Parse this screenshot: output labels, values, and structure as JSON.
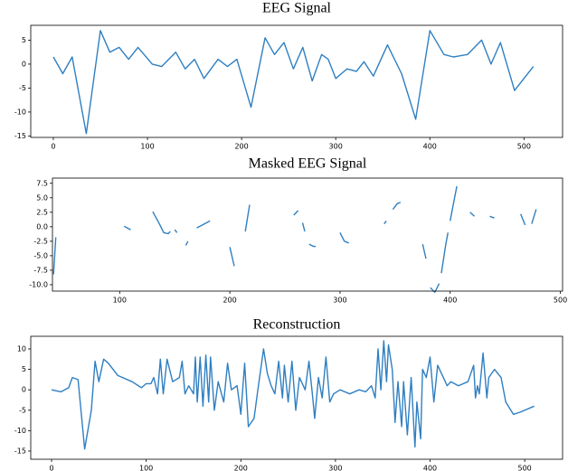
{
  "chart_data": [
    {
      "type": "line",
      "title": "EEG Signal",
      "color": "#2f7fc1",
      "x": [
        0,
        10,
        20,
        35,
        50,
        60,
        70,
        80,
        90,
        105,
        115,
        130,
        140,
        150,
        160,
        175,
        185,
        195,
        210,
        225,
        235,
        245,
        255,
        265,
        275,
        285,
        292,
        300,
        312,
        322,
        330,
        340,
        355,
        370,
        385,
        400,
        415,
        425,
        440,
        455,
        465,
        475,
        490,
        500,
        510
      ],
      "values": [
        1.5,
        -2,
        1.5,
        -14.5,
        7,
        2.5,
        3.5,
        1,
        3.5,
        0,
        -0.5,
        2.5,
        -1,
        1,
        -3,
        1,
        -0.5,
        1,
        -9,
        5.5,
        2,
        4.5,
        -1,
        3.5,
        -3.5,
        2,
        1,
        -3,
        -1,
        -1.5,
        0.5,
        -2.5,
        4,
        -2,
        -11.5,
        7,
        2,
        1.5,
        2,
        5,
        0,
        4.5,
        -5.5,
        -3,
        -0.5
      ],
      "xlim": [
        -24,
        541
      ],
      "ylim": [
        -15.3,
        8.1
      ],
      "xticks": [
        0,
        100,
        200,
        300,
        400,
        500
      ],
      "yticks": [
        -15,
        -10,
        -5,
        0,
        5
      ]
    },
    {
      "type": "line",
      "title": "Masked EEG Signal",
      "color": "#2f7fc1",
      "x": [
        40,
        42,
        null,
        104,
        110,
        null,
        130,
        136,
        140,
        144,
        146,
        null,
        150,
        152,
        null,
        160,
        162,
        null,
        170,
        176,
        182,
        null,
        200,
        204,
        null,
        214,
        218,
        null,
        258,
        262,
        null,
        266,
        268,
        null,
        272,
        276,
        278,
        null,
        300,
        304,
        308,
        null,
        340,
        342,
        null,
        348,
        352,
        355,
        null,
        375,
        378,
        null,
        382,
        386,
        390,
        null,
        392,
        396,
        398,
        null,
        400,
        404,
        406,
        null,
        418,
        422,
        null,
        436,
        440,
        null,
        464,
        468,
        null,
        474,
        478
      ],
      "values": [
        -8.2,
        -1.8,
        null,
        0.1,
        -0.5,
        null,
        2.6,
        0.5,
        -1,
        -1.2,
        -0.8,
        null,
        -0.5,
        -1,
        null,
        -3.2,
        -2.5,
        null,
        -0.2,
        0.4,
        1,
        null,
        -3.5,
        -6.8,
        null,
        -0.8,
        3.8,
        null,
        2,
        2.8,
        null,
        0.7,
        -0.8,
        null,
        -3,
        -3.4,
        -3.4,
        null,
        -1,
        -2.5,
        -2.8,
        null,
        0.5,
        1,
        null,
        3,
        4,
        4.2,
        null,
        -3,
        -5.5,
        null,
        -10.5,
        -11.3,
        -9.8,
        null,
        -8,
        -3,
        -1,
        null,
        1,
        5,
        7,
        null,
        2.5,
        1.8,
        null,
        1.8,
        1.5,
        null,
        2.2,
        0.3,
        null,
        0.5,
        3
      ],
      "xlim": [
        39,
        502
      ],
      "ylim": [
        -11.1,
        8.4
      ],
      "xticks": [
        100,
        200,
        300,
        400,
        500
      ],
      "yticks": [
        {
          "value": -10,
          "label": "-10.0"
        },
        -7.5,
        {
          "value": -5,
          "label": "-5.0"
        },
        -2.5,
        {
          "value": 0,
          "label": "0.0"
        },
        2.5,
        {
          "value": 5,
          "label": "5.0"
        },
        7.5
      ]
    },
    {
      "type": "line",
      "title": "Reconstruction",
      "color": "#2f7fc1",
      "x": [
        0,
        10,
        18,
        22,
        28,
        35,
        42,
        46,
        50,
        55,
        60,
        70,
        85,
        95,
        100,
        105,
        108,
        112,
        115,
        118,
        122,
        128,
        135,
        138,
        141,
        145,
        150,
        152,
        154,
        157,
        160,
        163,
        166,
        168,
        172,
        176,
        182,
        186,
        190,
        196,
        200,
        204,
        208,
        214,
        218,
        224,
        228,
        232,
        236,
        240,
        244,
        246,
        250,
        254,
        258,
        262,
        268,
        272,
        276,
        278,
        282,
        286,
        290,
        294,
        298,
        305,
        315,
        325,
        332,
        338,
        342,
        345,
        348,
        351,
        354,
        356,
        360,
        363,
        366,
        370,
        372,
        376,
        380,
        384,
        386,
        390,
        392,
        396,
        400,
        404,
        408,
        414,
        418,
        422,
        430,
        440,
        446,
        448,
        450,
        452,
        456,
        460,
        462,
        468,
        475,
        480,
        488,
        495,
        510
      ],
      "values": [
        0,
        -0.5,
        0.5,
        3,
        2.5,
        -14.5,
        -5,
        7,
        2,
        7.5,
        6.5,
        3.5,
        2,
        0.5,
        1.5,
        1.5,
        3,
        -1,
        7.5,
        -1,
        7.5,
        2,
        3,
        7,
        -1,
        1,
        -1,
        8,
        -3,
        8,
        -4,
        8.5,
        -3,
        8,
        -5,
        2,
        -3,
        6.5,
        0,
        1,
        -6,
        6.5,
        -9,
        -7,
        0,
        10,
        4,
        1,
        -1,
        7,
        -2,
        6,
        -3,
        7,
        -5,
        3,
        0,
        7,
        -2,
        -7,
        3,
        -2,
        8,
        -3,
        -1,
        0,
        -1,
        0,
        -0.5,
        1,
        -2,
        10,
        0,
        12,
        2,
        11,
        5,
        -8,
        2,
        -9,
        2,
        -11,
        3,
        -14,
        -3,
        -12,
        5,
        3,
        8,
        -3,
        6,
        3,
        1,
        2,
        1,
        2,
        6,
        -2,
        1,
        -1,
        9,
        -2,
        3,
        5,
        3,
        -3,
        -6,
        -5.5,
        -4
      ],
      "xlim": [
        -22,
        540
      ],
      "ylim": [
        -17,
        13.1
      ],
      "xticks": [
        0,
        100,
        200,
        300,
        400,
        500
      ],
      "yticks": [
        -15,
        -10,
        -5,
        0,
        5,
        10
      ]
    }
  ]
}
